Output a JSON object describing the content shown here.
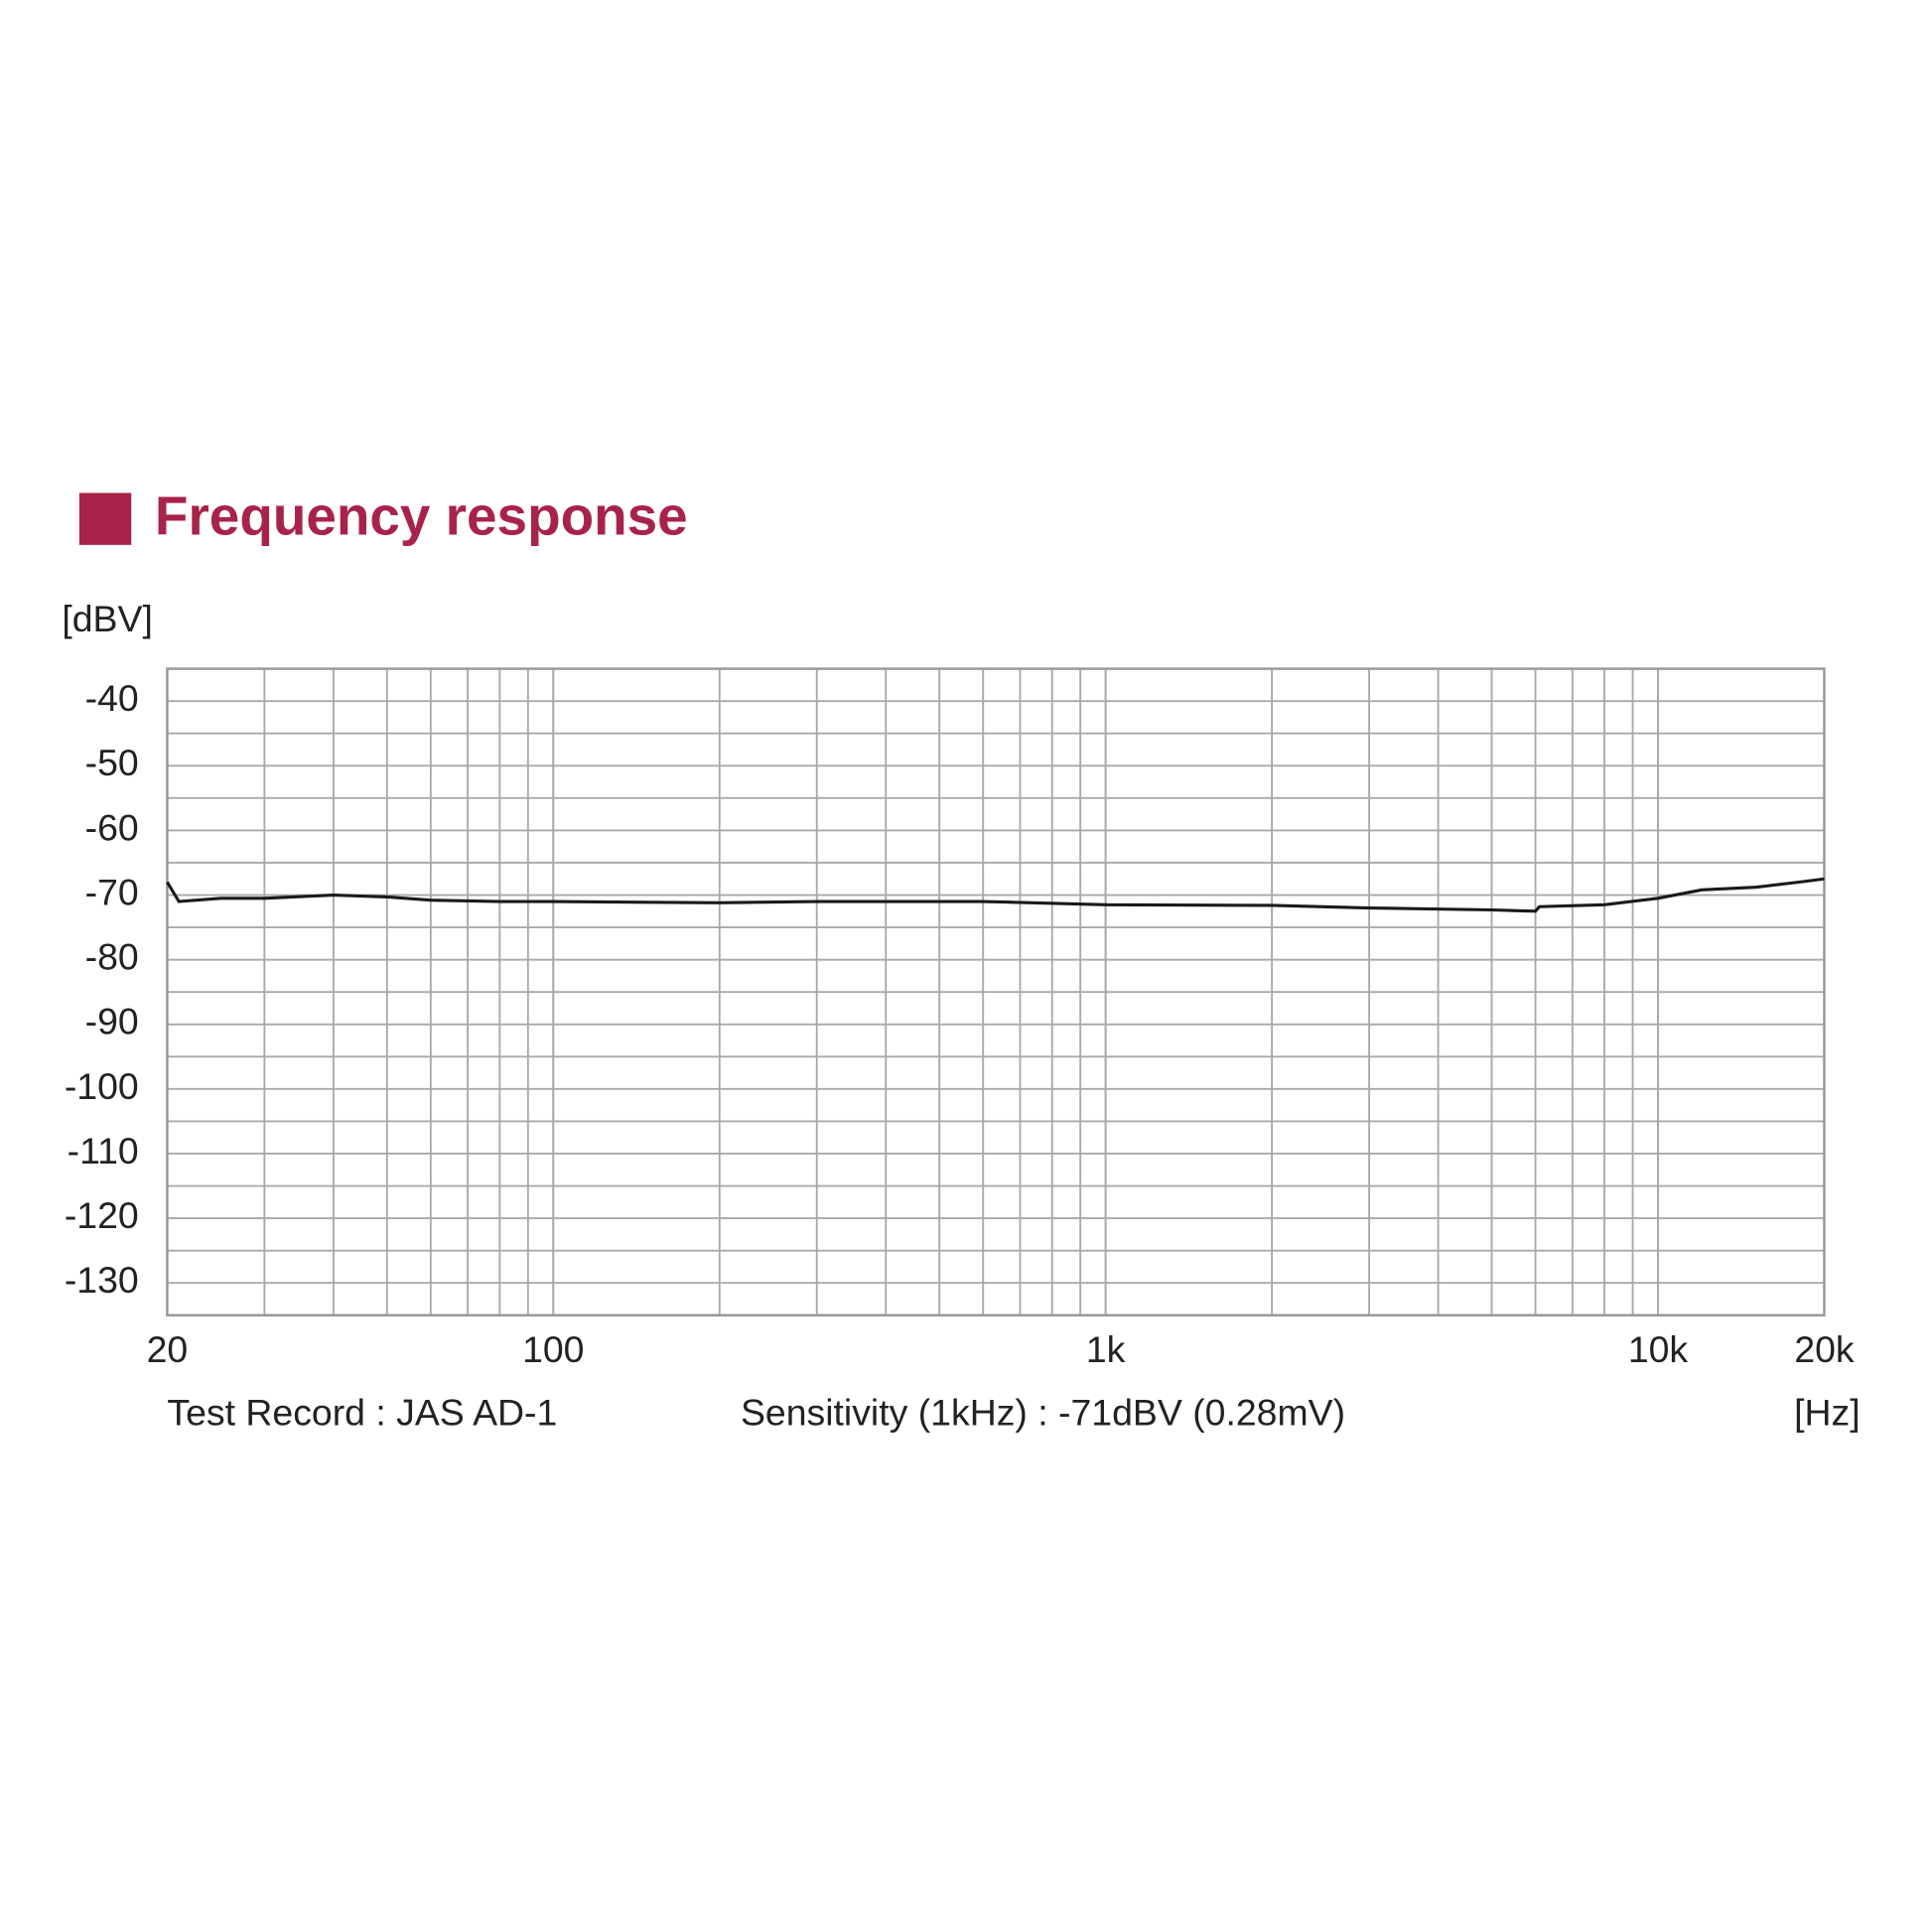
{
  "chart_data": {
    "type": "line",
    "title": "Frequency response",
    "y_label": "[dBV]",
    "x_label": "[Hz]",
    "annotations": [
      "Test Record : JAS AD-1",
      "Sensitivity (1kHz) : -71dBV (0.28mV)"
    ],
    "x": [
      20,
      21,
      25,
      30,
      40,
      50,
      60,
      80,
      100,
      200,
      300,
      600,
      1000,
      2000,
      3000,
      5000,
      6000,
      6100,
      8000,
      10000,
      12000,
      15000,
      18000,
      20000
    ],
    "series": [
      {
        "color": "#1a1a1a",
        "values": [
          -68,
          -71,
          -70.5,
          -70.5,
          -70,
          -70.3,
          -70.8,
          -71,
          -71,
          -71.2,
          -71,
          -71,
          -71.5,
          -71.6,
          -72,
          -72.3,
          -72.5,
          -71.8,
          -71.5,
          -70.5,
          -69.2,
          -68.8,
          -68,
          -67.5
        ]
      }
    ],
    "xlim": [
      20,
      20000
    ],
    "xscale": "log",
    "xticks": [
      20,
      100,
      {
        "value": 1000,
        "label": "1k"
      },
      {
        "value": 10000,
        "label": "10k"
      },
      {
        "value": 20000,
        "label": "20k"
      }
    ],
    "ylim": [
      -135,
      -35
    ],
    "yticks": [
      -40,
      -50,
      -60,
      -70,
      -80,
      -90,
      -100,
      -110,
      -120,
      -130
    ],
    "grid": true,
    "accent_color": "#a8234a"
  }
}
